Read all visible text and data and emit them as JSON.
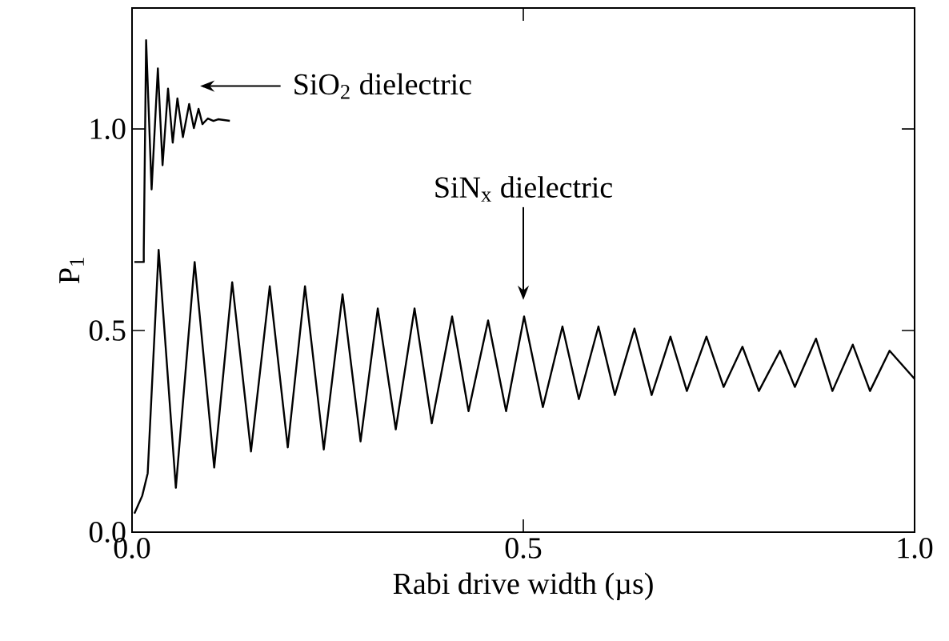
{
  "chart_data": {
    "type": "line",
    "xlabel": "Rabi drive width (µs)",
    "ylabel": "P$_{1}$",
    "xlim": [
      0,
      1
    ],
    "ylim": [
      0,
      1.3
    ],
    "xticks": [
      {
        "value": 0,
        "label": "0.0"
      },
      0.5,
      {
        "value": 1,
        "label": "1.0"
      }
    ],
    "yticks": [
      {
        "value": 0,
        "label": "0.0"
      },
      0.5,
      {
        "value": 1,
        "label": "1.0"
      }
    ],
    "marker": "none",
    "line_style": "solid",
    "annotations": [
      "SiO$_{2}$ dielectric",
      "SiN$_{x}$ dielectric"
    ],
    "series": [
      {
        "color": "#000000",
        "x": [
          0.003,
          0.015,
          0.015,
          0.018,
          0.025,
          0.033,
          0.039,
          0.046,
          0.052,
          0.058,
          0.065,
          0.073,
          0.079,
          0.085,
          0.09,
          0.097,
          0.104,
          0.11,
          0.125
        ],
        "values": [
          0.67,
          0.67,
          0.7,
          1.22,
          0.85,
          1.15,
          0.91,
          1.1,
          0.966,
          1.076,
          0.98,
          1.062,
          1.002,
          1.05,
          1.012,
          1.026,
          1.02,
          1.024,
          1.02
        ]
      },
      {
        "color": "#000000",
        "x": [
          0.003,
          0.013,
          0.02,
          0.034,
          0.056,
          0.08,
          0.105,
          0.128,
          0.152,
          0.176,
          0.199,
          0.221,
          0.245,
          0.269,
          0.292,
          0.314,
          0.337,
          0.361,
          0.383,
          0.409,
          0.43,
          0.455,
          0.478,
          0.501,
          0.525,
          0.55,
          0.571,
          0.596,
          0.617,
          0.642,
          0.664,
          0.688,
          0.709,
          0.734,
          0.756,
          0.78,
          0.801,
          0.828,
          0.847,
          0.874,
          0.895,
          0.921,
          0.943,
          0.968,
          1.0
        ],
        "values": [
          0.046,
          0.09,
          0.146,
          0.7,
          0.11,
          0.67,
          0.16,
          0.62,
          0.2,
          0.61,
          0.21,
          0.61,
          0.205,
          0.59,
          0.225,
          0.555,
          0.255,
          0.555,
          0.27,
          0.535,
          0.3,
          0.525,
          0.3,
          0.535,
          0.31,
          0.51,
          0.33,
          0.51,
          0.34,
          0.505,
          0.34,
          0.485,
          0.35,
          0.485,
          0.36,
          0.46,
          0.35,
          0.45,
          0.36,
          0.48,
          0.35,
          0.465,
          0.35,
          0.45,
          0.38
        ]
      }
    ]
  }
}
